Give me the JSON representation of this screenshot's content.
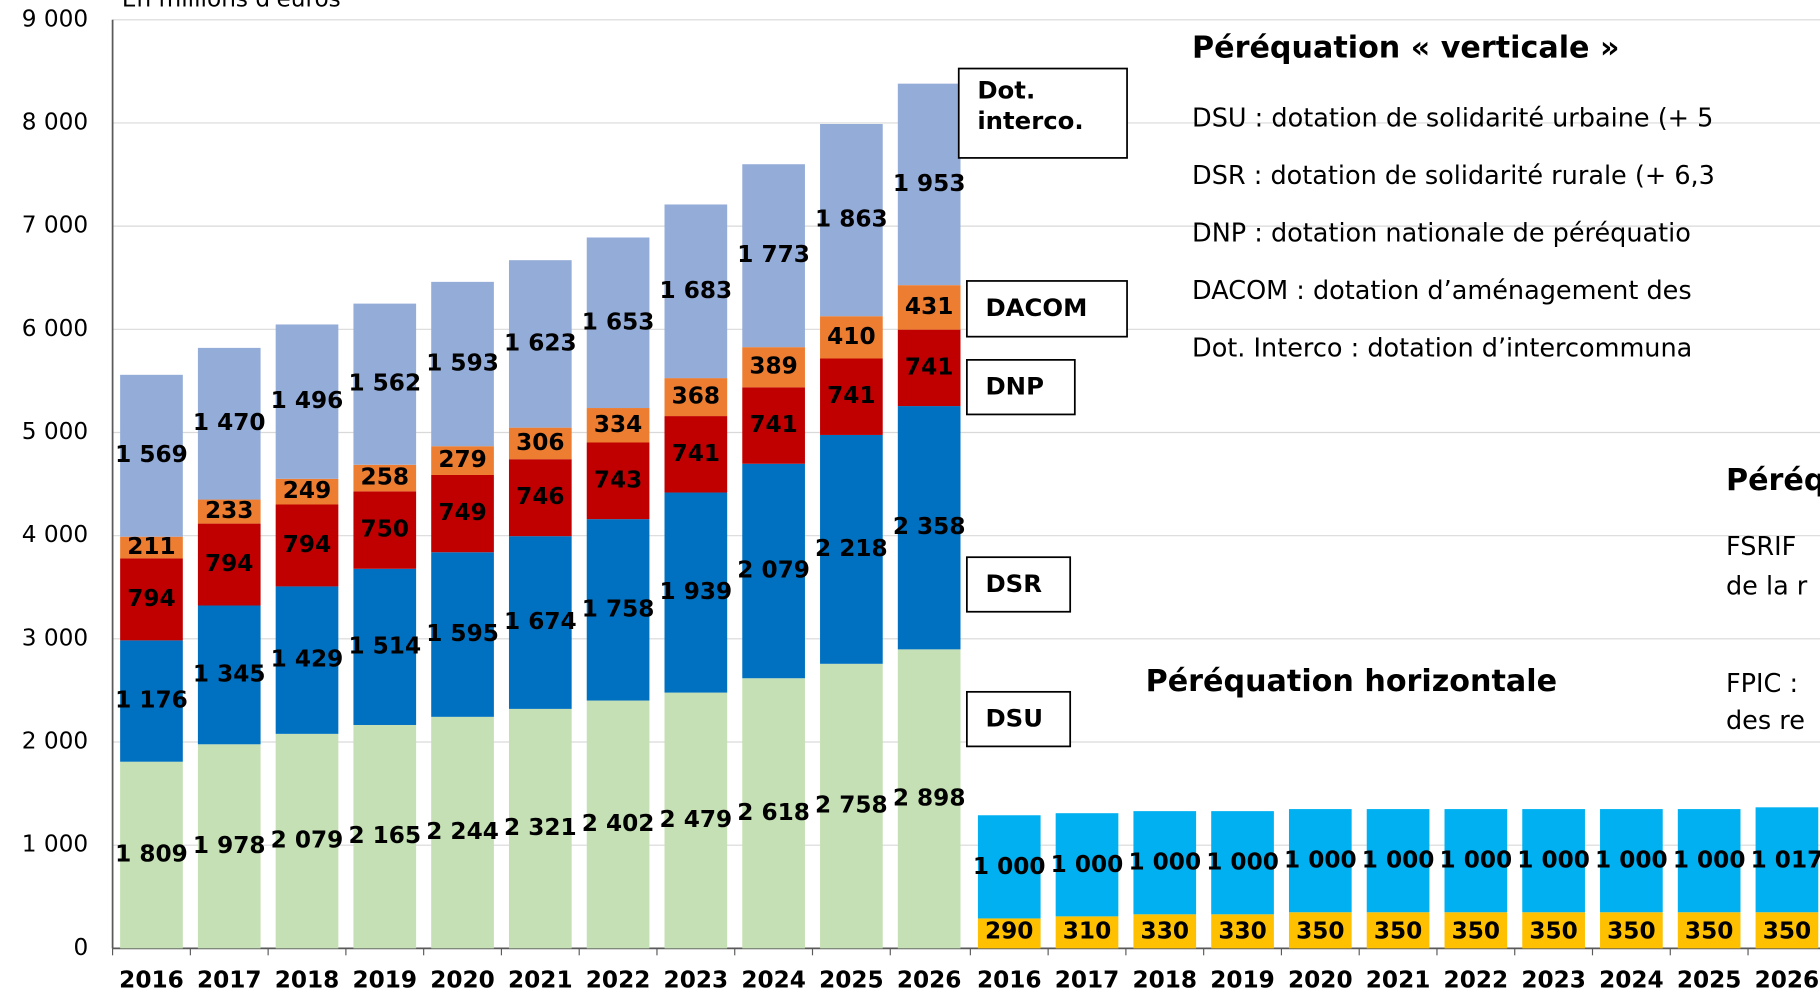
{
  "chart_data": [
    {
      "type": "stacked_bar",
      "title": "Péréquation « verticale »",
      "y_axis_label": "En millions d'euros",
      "ylim": [
        0,
        9000
      ],
      "yticks": [
        0,
        {
          "value": 1000,
          "label": "1 000"
        },
        {
          "value": 2000,
          "label": "2 000"
        },
        {
          "value": 3000,
          "label": "3 000"
        },
        {
          "value": 4000,
          "label": "4 000"
        },
        {
          "value": 5000,
          "label": "5 000"
        },
        {
          "value": 6000,
          "label": "6 000"
        },
        {
          "value": 7000,
          "label": "7 000"
        },
        {
          "value": 8000,
          "label": "8 000"
        },
        {
          "value": 9000,
          "label": "9 000"
        }
      ],
      "grid": true,
      "categories": [
        "2016",
        "2017",
        "2018",
        "2019",
        "2020",
        "2021",
        "2022",
        "2023",
        "2024",
        "2025",
        "2026"
      ],
      "series": [
        {
          "name": "DSU",
          "color": "#c5e0b4",
          "values": [
            1809,
            1978,
            2079,
            2165,
            2244,
            2321,
            2402,
            2479,
            2618,
            2758,
            2898
          ],
          "value_labels": [
            "1 809",
            "1 978",
            "2 079",
            "2 165",
            "2 244",
            "2 321",
            "2 402",
            "2 479",
            "2 618",
            "2 758",
            "2 898"
          ]
        },
        {
          "name": "DSR",
          "color": "#0070c0",
          "values": [
            1176,
            1345,
            1429,
            1514,
            1595,
            1674,
            1758,
            1939,
            2079,
            2218,
            2358
          ],
          "value_labels": [
            "1 176",
            "1 345",
            "1 429",
            "1 514",
            "1 595",
            "1 674",
            "1 758",
            "1 939",
            "2 079",
            "2 218",
            "2 358"
          ]
        },
        {
          "name": "DNP",
          "color": "#c00000",
          "values": [
            794,
            794,
            794,
            750,
            749,
            746,
            743,
            741,
            741,
            741,
            741
          ]
        },
        {
          "name": "DACOM",
          "color": "#ed7d31",
          "values": [
            211,
            233,
            249,
            258,
            279,
            306,
            334,
            368,
            389,
            410,
            431
          ]
        },
        {
          "name": "Dot. interco.",
          "color": "#94acd8",
          "values": [
            1569,
            1470,
            1496,
            1562,
            1593,
            1623,
            1653,
            1683,
            1773,
            1863,
            1953
          ],
          "value_labels": [
            "1 569",
            "1 470",
            "1 496",
            "1 562",
            "1 593",
            "1 623",
            "1 653",
            "1 683",
            "1 773",
            "1 863",
            "1 953"
          ]
        }
      ],
      "notes": [
        "DSU : dotation de solidarité urbaine (+ 5",
        "DSR : dotation de solidarité rurale (+ 6,3",
        "DNP : dotation nationale de péréquatio",
        "DACOM : dotation d’aménagement des",
        "Dot. Interco : dotation d’intercommuna"
      ]
    },
    {
      "type": "stacked_bar",
      "title": "Péréquation horizontale",
      "categories": [
        "2016",
        "2017",
        "2018",
        "2019",
        "2020",
        "2021",
        "2022",
        "2023",
        "2024",
        "2025",
        "2026"
      ],
      "series": [
        {
          "color": "#ffc000",
          "values": [
            290,
            310,
            330,
            330,
            350,
            350,
            350,
            350,
            350,
            350,
            350
          ]
        },
        {
          "color": "#00b0f0",
          "values": [
            1000,
            1000,
            1000,
            1000,
            1000,
            1000,
            1000,
            1000,
            1000,
            1000,
            1017
          ],
          "value_labels": [
            "1 000",
            "1 000",
            "1 000",
            "1 000",
            "1 000",
            "1 000",
            "1 000",
            "1 000",
            "1 000",
            "1 000",
            "1 017"
          ]
        }
      ],
      "notes": [
        "Péréq",
        "FSRIF",
        "de la r",
        "FPIC :",
        "des re"
      ]
    }
  ]
}
